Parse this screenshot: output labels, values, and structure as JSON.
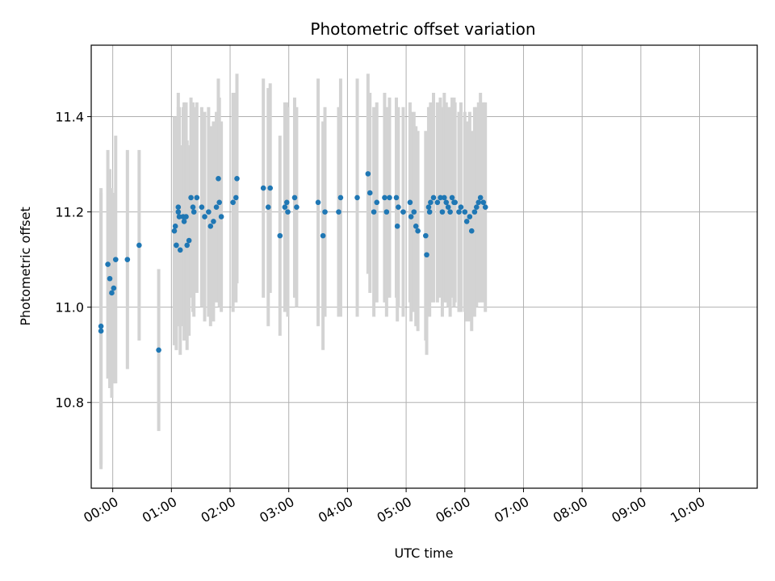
{
  "colors": {
    "points": "#1f77b4",
    "error_bars": "#d3d3d3",
    "grid": "#b0b0b0"
  },
  "chart_data": {
    "type": "scatter",
    "title": "Photometric offset variation",
    "xlabel": "UTC time",
    "ylabel": "Photometric offset",
    "xlim": [
      "-00:22",
      "10:59"
    ],
    "ylim": [
      10.62,
      11.55
    ],
    "grid": true,
    "x_ticks": [
      "00:00",
      "01:00",
      "02:00",
      "03:00",
      "04:00",
      "05:00",
      "06:00",
      "07:00",
      "08:00",
      "09:00",
      "10:00"
    ],
    "y_ticks": [
      10.8,
      11.0,
      11.2,
      11.4
    ],
    "y_tick_labels": [
      "10.8",
      "11.0",
      "11.2",
      "11.4"
    ],
    "series": [
      {
        "type": "errorbar_scatter",
        "x": [
          "-00:12",
          "-00:12",
          "-00:05",
          "-00:03",
          "-00:01",
          "00:01",
          "00:03",
          "00:15",
          "00:27",
          "00:47",
          "01:03",
          "01:04",
          "01:05",
          "01:05",
          "01:07",
          "01:07",
          "01:08",
          "01:09",
          "01:12",
          "01:13",
          "01:15",
          "01:16",
          "01:18",
          "01:20",
          "01:22",
          "01:23",
          "01:26",
          "01:31",
          "01:34",
          "01:38",
          "01:40",
          "01:43",
          "01:46",
          "01:48",
          "01:49",
          "01:51",
          "02:03",
          "02:06",
          "02:07",
          "02:34",
          "02:39",
          "02:41",
          "02:51",
          "02:56",
          "02:58",
          "02:59",
          "03:06",
          "03:08",
          "03:30",
          "03:35",
          "03:37",
          "03:51",
          "03:53",
          "04:10",
          "04:21",
          "04:23",
          "04:27",
          "04:30",
          "04:38",
          "04:40",
          "04:43",
          "04:50",
          "04:51",
          "04:52",
          "04:57",
          "05:04",
          "05:05",
          "05:08",
          "05:10",
          "05:12",
          "05:20",
          "05:21",
          "05:23",
          "05:24",
          "05:25",
          "05:28",
          "05:32",
          "05:35",
          "05:37",
          "05:39",
          "05:41",
          "05:43",
          "05:45",
          "05:47",
          "05:49",
          "05:50",
          "05:54",
          "05:56",
          "06:00",
          "06:02",
          "06:05",
          "06:07",
          "06:10",
          "06:12",
          "06:14",
          "06:16",
          "06:19",
          "06:21"
        ],
        "y": [
          10.95,
          10.96,
          11.09,
          11.06,
          11.03,
          11.04,
          11.1,
          11.1,
          11.13,
          10.91,
          11.16,
          11.17,
          11.13,
          11.13,
          11.2,
          11.21,
          11.19,
          11.12,
          11.19,
          11.18,
          11.19,
          11.13,
          11.14,
          11.23,
          11.21,
          11.2,
          11.23,
          11.21,
          11.19,
          11.2,
          11.17,
          11.18,
          11.21,
          11.27,
          11.22,
          11.19,
          11.22,
          11.23,
          11.27,
          11.25,
          11.21,
          11.25,
          11.15,
          11.21,
          11.22,
          11.2,
          11.23,
          11.21,
          11.22,
          11.15,
          11.2,
          11.2,
          11.23,
          11.23,
          11.28,
          11.24,
          11.2,
          11.22,
          11.23,
          11.2,
          11.23,
          11.23,
          11.17,
          11.21,
          11.2,
          11.22,
          11.19,
          11.2,
          11.17,
          11.16,
          11.15,
          11.11,
          11.21,
          11.2,
          11.22,
          11.23,
          11.22,
          11.23,
          11.2,
          11.23,
          11.22,
          11.21,
          11.2,
          11.23,
          11.22,
          11.22,
          11.2,
          11.21,
          11.2,
          11.18,
          11.19,
          11.16,
          11.2,
          11.21,
          11.22,
          11.23,
          11.22,
          11.21
        ],
        "yerr": [
          0.29,
          0.29,
          0.24,
          0.23,
          0.22,
          0.2,
          0.26,
          0.23,
          0.2,
          0.17,
          0.24,
          0.23,
          0.22,
          0.22,
          0.22,
          0.24,
          0.23,
          0.22,
          0.23,
          0.25,
          0.24,
          0.22,
          0.2,
          0.21,
          0.22,
          0.22,
          0.2,
          0.21,
          0.22,
          0.22,
          0.21,
          0.21,
          0.2,
          0.21,
          0.22,
          0.2,
          0.23,
          0.22,
          0.22,
          0.23,
          0.25,
          0.22,
          0.21,
          0.22,
          0.21,
          0.22,
          0.21,
          0.21,
          0.26,
          0.24,
          0.22,
          0.22,
          0.25,
          0.25,
          0.21,
          0.21,
          0.22,
          0.21,
          0.22,
          0.22,
          0.21,
          0.21,
          0.2,
          0.21,
          0.22,
          0.21,
          0.22,
          0.21,
          0.21,
          0.21,
          0.22,
          0.21,
          0.21,
          0.22,
          0.21,
          0.22,
          0.21,
          0.21,
          0.22,
          0.22,
          0.21,
          0.21,
          0.22,
          0.21,
          0.22,
          0.21,
          0.21,
          0.22,
          0.21,
          0.21,
          0.22,
          0.21,
          0.22,
          0.21,
          0.21,
          0.22,
          0.21,
          0.22
        ]
      }
    ]
  }
}
